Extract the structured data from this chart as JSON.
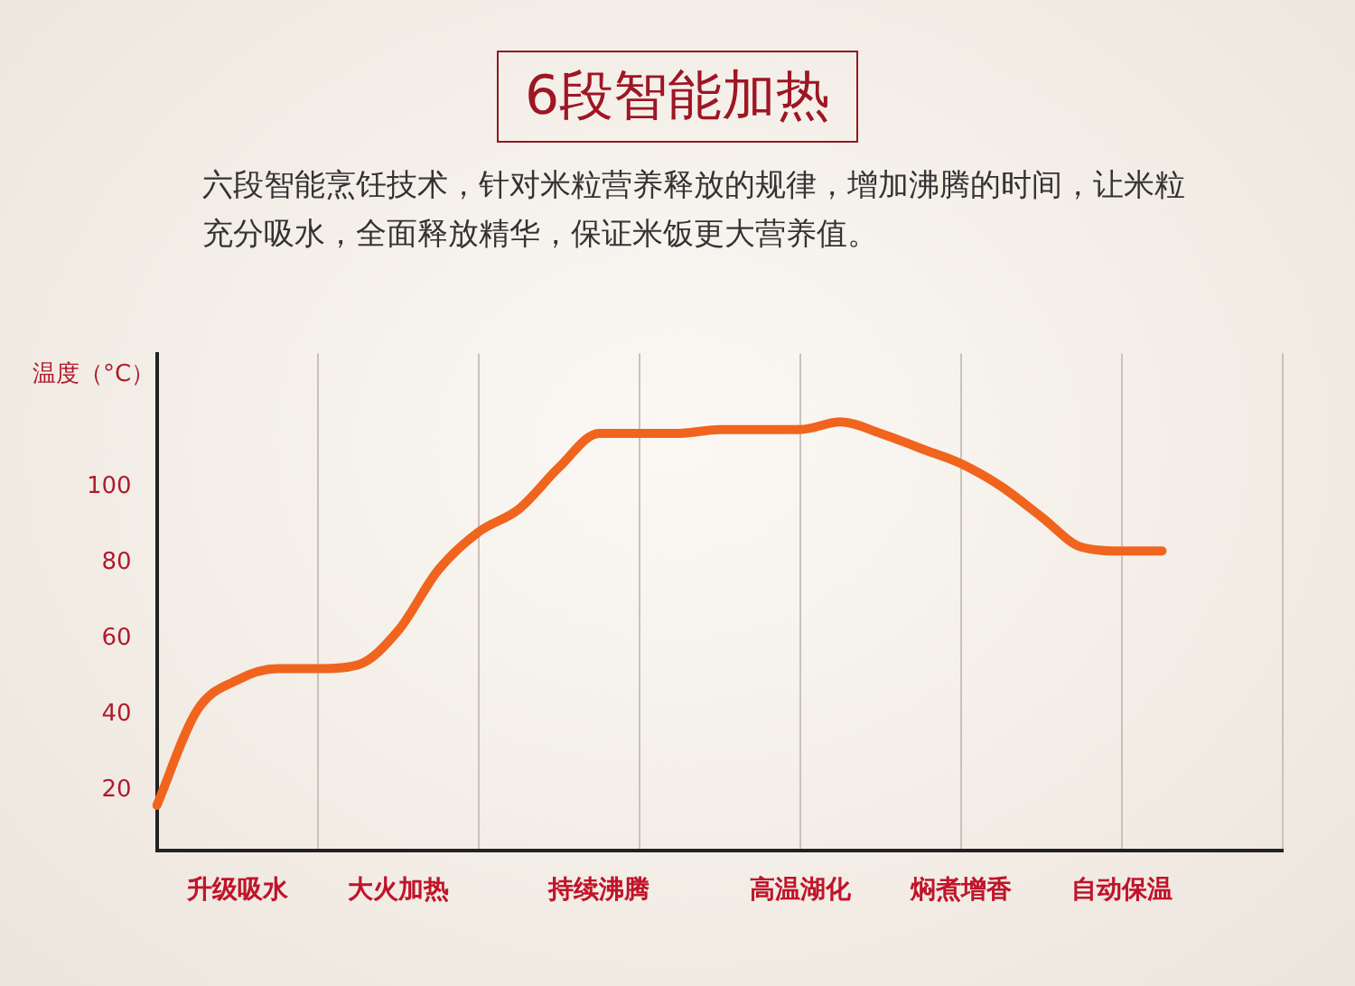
{
  "chart_data": {
    "type": "line",
    "title": "6段智能加热",
    "subtitle": "六段智能烹饪技术，针对米粒营养释放的规律，增加沸腾的时间，让米粒充分吸水，全面释放精华，保证米饭更大营养值。",
    "ylabel": "温度（°C）",
    "categories": [
      null,
      null,
      "升级吸水",
      null,
      null,
      null,
      "大火加热",
      null,
      null,
      null,
      null,
      "持续沸腾",
      null,
      null,
      null,
      null,
      "高温湖化",
      null,
      null,
      null,
      "焖煮增香",
      null,
      null,
      null,
      "自动保温",
      null,
      null,
      null,
      null
    ],
    "series": [
      {
        "color": "#f0641e",
        "values": [
          16,
          41,
          49,
          52,
          52,
          53,
          62,
          78,
          88,
          94,
          105,
          114,
          114,
          114,
          115,
          115,
          115,
          117,
          114,
          110,
          106,
          100,
          92,
          84,
          83,
          83,
          null,
          null,
          null
        ]
      }
    ],
    "ylim": [
      4,
      135
    ],
    "yticks": [
      20,
      40,
      60,
      80,
      100
    ],
    "grid": "x",
    "legend": false,
    "marker": "none",
    "line_style": "solid"
  }
}
